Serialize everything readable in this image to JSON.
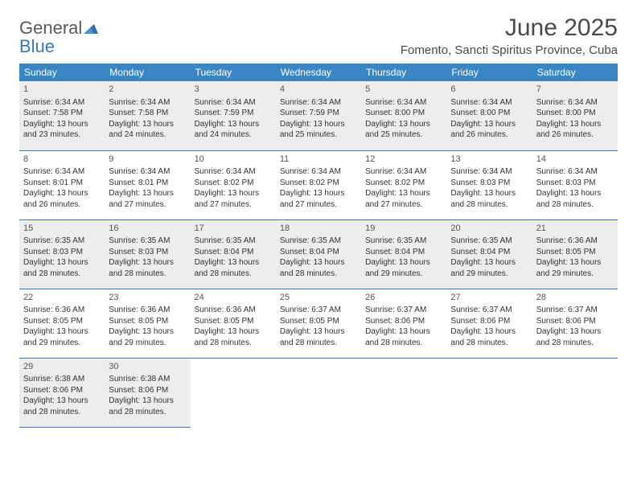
{
  "logo": {
    "text1": "General",
    "text2": "Blue"
  },
  "title": "June 2025",
  "location": "Fomento, Sancti Spiritus Province, Cuba",
  "colors": {
    "header_bg": "#3a85c4",
    "header_text": "#ffffff",
    "border": "#3a7ab8",
    "shaded_bg": "#ededed",
    "body_text": "#333333",
    "title_text": "#4a4a4a",
    "logo_gray": "#5a5a5a",
    "logo_blue": "#3a7ab8"
  },
  "weekdays": [
    "Sunday",
    "Monday",
    "Tuesday",
    "Wednesday",
    "Thursday",
    "Friday",
    "Saturday"
  ],
  "weeks": [
    [
      {
        "n": "1",
        "sr": "6:34 AM",
        "ss": "7:58 PM",
        "dl": "13 hours and 23 minutes."
      },
      {
        "n": "2",
        "sr": "6:34 AM",
        "ss": "7:58 PM",
        "dl": "13 hours and 24 minutes."
      },
      {
        "n": "3",
        "sr": "6:34 AM",
        "ss": "7:59 PM",
        "dl": "13 hours and 24 minutes."
      },
      {
        "n": "4",
        "sr": "6:34 AM",
        "ss": "7:59 PM",
        "dl": "13 hours and 25 minutes."
      },
      {
        "n": "5",
        "sr": "6:34 AM",
        "ss": "8:00 PM",
        "dl": "13 hours and 25 minutes."
      },
      {
        "n": "6",
        "sr": "6:34 AM",
        "ss": "8:00 PM",
        "dl": "13 hours and 26 minutes."
      },
      {
        "n": "7",
        "sr": "6:34 AM",
        "ss": "8:00 PM",
        "dl": "13 hours and 26 minutes."
      }
    ],
    [
      {
        "n": "8",
        "sr": "6:34 AM",
        "ss": "8:01 PM",
        "dl": "13 hours and 26 minutes."
      },
      {
        "n": "9",
        "sr": "6:34 AM",
        "ss": "8:01 PM",
        "dl": "13 hours and 27 minutes."
      },
      {
        "n": "10",
        "sr": "6:34 AM",
        "ss": "8:02 PM",
        "dl": "13 hours and 27 minutes."
      },
      {
        "n": "11",
        "sr": "6:34 AM",
        "ss": "8:02 PM",
        "dl": "13 hours and 27 minutes."
      },
      {
        "n": "12",
        "sr": "6:34 AM",
        "ss": "8:02 PM",
        "dl": "13 hours and 27 minutes."
      },
      {
        "n": "13",
        "sr": "6:34 AM",
        "ss": "8:03 PM",
        "dl": "13 hours and 28 minutes."
      },
      {
        "n": "14",
        "sr": "6:34 AM",
        "ss": "8:03 PM",
        "dl": "13 hours and 28 minutes."
      }
    ],
    [
      {
        "n": "15",
        "sr": "6:35 AM",
        "ss": "8:03 PM",
        "dl": "13 hours and 28 minutes."
      },
      {
        "n": "16",
        "sr": "6:35 AM",
        "ss": "8:03 PM",
        "dl": "13 hours and 28 minutes."
      },
      {
        "n": "17",
        "sr": "6:35 AM",
        "ss": "8:04 PM",
        "dl": "13 hours and 28 minutes."
      },
      {
        "n": "18",
        "sr": "6:35 AM",
        "ss": "8:04 PM",
        "dl": "13 hours and 28 minutes."
      },
      {
        "n": "19",
        "sr": "6:35 AM",
        "ss": "8:04 PM",
        "dl": "13 hours and 29 minutes."
      },
      {
        "n": "20",
        "sr": "6:35 AM",
        "ss": "8:04 PM",
        "dl": "13 hours and 29 minutes."
      },
      {
        "n": "21",
        "sr": "6:36 AM",
        "ss": "8:05 PM",
        "dl": "13 hours and 29 minutes."
      }
    ],
    [
      {
        "n": "22",
        "sr": "6:36 AM",
        "ss": "8:05 PM",
        "dl": "13 hours and 29 minutes."
      },
      {
        "n": "23",
        "sr": "6:36 AM",
        "ss": "8:05 PM",
        "dl": "13 hours and 29 minutes."
      },
      {
        "n": "24",
        "sr": "6:36 AM",
        "ss": "8:05 PM",
        "dl": "13 hours and 28 minutes."
      },
      {
        "n": "25",
        "sr": "6:37 AM",
        "ss": "8:05 PM",
        "dl": "13 hours and 28 minutes."
      },
      {
        "n": "26",
        "sr": "6:37 AM",
        "ss": "8:06 PM",
        "dl": "13 hours and 28 minutes."
      },
      {
        "n": "27",
        "sr": "6:37 AM",
        "ss": "8:06 PM",
        "dl": "13 hours and 28 minutes."
      },
      {
        "n": "28",
        "sr": "6:37 AM",
        "ss": "8:06 PM",
        "dl": "13 hours and 28 minutes."
      }
    ],
    [
      {
        "n": "29",
        "sr": "6:38 AM",
        "ss": "8:06 PM",
        "dl": "13 hours and 28 minutes."
      },
      {
        "n": "30",
        "sr": "6:38 AM",
        "ss": "8:06 PM",
        "dl": "13 hours and 28 minutes."
      },
      null,
      null,
      null,
      null,
      null
    ]
  ],
  "labels": {
    "sunrise": "Sunrise:",
    "sunset": "Sunset:",
    "daylight": "Daylight:"
  }
}
